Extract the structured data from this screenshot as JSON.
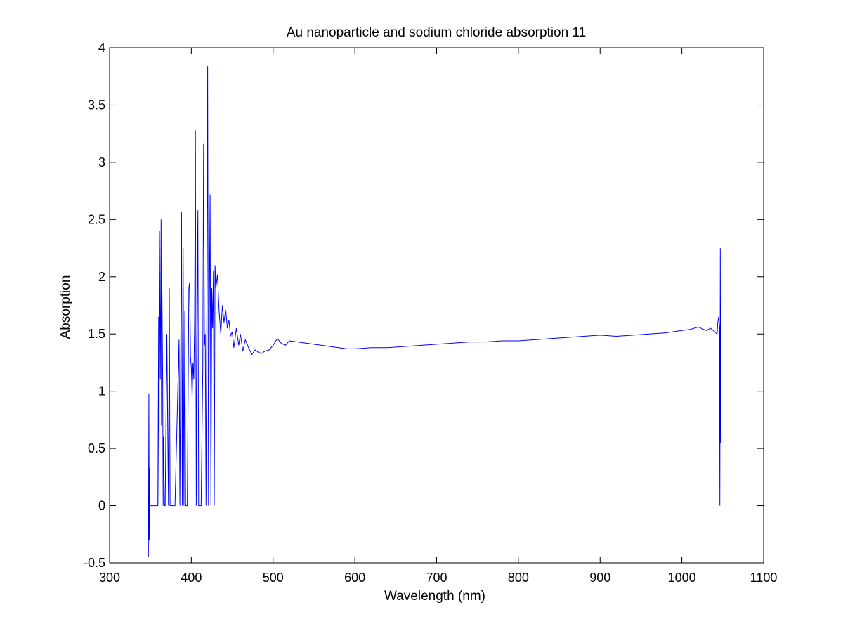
{
  "chart_data": {
    "type": "line",
    "title": "Au nanoparticle and sodium chloride absorption 11",
    "xlabel": "Wavelength (nm)",
    "ylabel": "Absorption",
    "xlim": [
      300,
      1100
    ],
    "ylim": [
      -0.5,
      4
    ],
    "xticks": [
      "300",
      "400",
      "500",
      "600",
      "700",
      "800",
      "900",
      "1000",
      "1100"
    ],
    "yticks": [
      "-0.5",
      "0",
      "0.5",
      "1",
      "1.5",
      "2",
      "2.5",
      "3",
      "3.5",
      "4"
    ],
    "grid": false,
    "line_color": "#0000ff",
    "series": [
      {
        "x": [
          347,
          347.5,
          348,
          348.5,
          349,
          349.5,
          350,
          352,
          355,
          359,
          360,
          360.5,
          361,
          362,
          363,
          363.5,
          364,
          365,
          365.5,
          366,
          367,
          368,
          370,
          372,
          373,
          374,
          375,
          378,
          380,
          385,
          386,
          388,
          389,
          390,
          391,
          392,
          393,
          395,
          397,
          398,
          399,
          400,
          401,
          402,
          403,
          404,
          405,
          406,
          407,
          408,
          409,
          410,
          412,
          414,
          415,
          416,
          417,
          418,
          419,
          420,
          421,
          422,
          423,
          424,
          425,
          426,
          427,
          428,
          429,
          430,
          432,
          434,
          436,
          438,
          440,
          442,
          444,
          446,
          448,
          450,
          452,
          455,
          458,
          460,
          463,
          466,
          470,
          474,
          478,
          482,
          486,
          490,
          495,
          500,
          505,
          510,
          515,
          520,
          530,
          540,
          550,
          560,
          570,
          580,
          590,
          600,
          620,
          640,
          660,
          680,
          700,
          720,
          740,
          760,
          780,
          800,
          820,
          840,
          860,
          880,
          900,
          920,
          940,
          960,
          980,
          1000,
          1010,
          1020,
          1030,
          1035,
          1040,
          1043,
          1044,
          1045,
          1046,
          1046.5,
          1047,
          1047.5,
          1048
        ],
        "y": [
          -0.2,
          -0.45,
          0.98,
          -0.3,
          0.33,
          0,
          0,
          0,
          0,
          0,
          1.65,
          0,
          2.4,
          1.1,
          2.5,
          0.7,
          1.9,
          1.1,
          0,
          0.6,
          0,
          0,
          1.5,
          0,
          1.9,
          0,
          0,
          0,
          0,
          1.45,
          0,
          2.57,
          0,
          2.25,
          0,
          1.7,
          0,
          0,
          1.9,
          1.95,
          1.3,
          1.2,
          0.95,
          1.25,
          1.1,
          1.6,
          3.28,
          0,
          1.55,
          2.58,
          0,
          0,
          0,
          1.2,
          3.16,
          1.4,
          1.5,
          0,
          1.75,
          3.84,
          0,
          1.7,
          2.72,
          0,
          1.9,
          1.55,
          2.05,
          0,
          2.1,
          1.9,
          2.02,
          1.7,
          1.5,
          1.75,
          1.6,
          1.72,
          1.55,
          1.62,
          1.48,
          1.52,
          1.38,
          1.55,
          1.4,
          1.5,
          1.35,
          1.45,
          1.38,
          1.32,
          1.36,
          1.34,
          1.33,
          1.35,
          1.36,
          1.4,
          1.46,
          1.42,
          1.4,
          1.44,
          1.43,
          1.42,
          1.41,
          1.4,
          1.39,
          1.38,
          1.37,
          1.37,
          1.38,
          1.38,
          1.39,
          1.4,
          1.41,
          1.42,
          1.43,
          1.43,
          1.44,
          1.44,
          1.45,
          1.46,
          1.47,
          1.48,
          1.49,
          1.48,
          1.49,
          1.5,
          1.51,
          1.53,
          1.54,
          1.56,
          1.53,
          1.55,
          1.52,
          1.5,
          1.6,
          1.65,
          1.55,
          0,
          2.25,
          0.55,
          1.83
        ]
      }
    ]
  }
}
